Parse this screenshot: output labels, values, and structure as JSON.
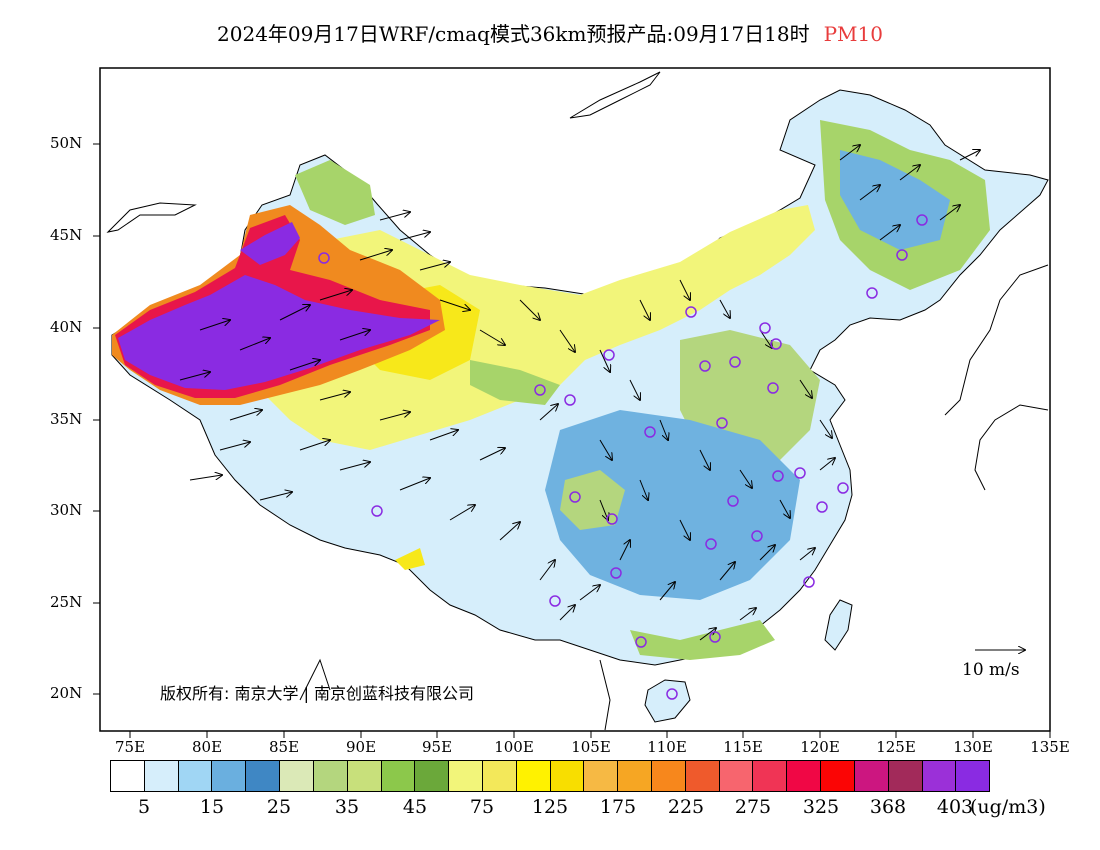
{
  "header": {
    "title": "2024年09月17日WRF/cmaq模式36km预报产品:09月17日18时",
    "pollutant": "PM10"
  },
  "map": {
    "lat_labels": [
      "50N",
      "45N",
      "40N",
      "35N",
      "30N",
      "25N",
      "20N"
    ],
    "lon_labels": [
      "75E",
      "80E",
      "85E",
      "90E",
      "95E",
      "100E",
      "105E",
      "110E",
      "115E",
      "120E",
      "125E",
      "130E",
      "135E"
    ],
    "copyright": "版权所有: 南京大学 | 南京创蓝科技有限公司",
    "wind_reference": "10 m/s",
    "colors": {
      "extreme": "#8a2be2",
      "very_high": "#e8164a",
      "high": "#f08a1f",
      "moderate": "#f7e81a",
      "good": "#a7d46a",
      "low": "#6fb2e0",
      "very_low": "#cfe9f8",
      "station": "#8a2be2"
    }
  },
  "legend": {
    "colors": [
      "#ffffff",
      "#d6eefb",
      "#a0d6f4",
      "#6aafdf",
      "#3f87c4",
      "#dbe9b7",
      "#b4d67e",
      "#c8e07b",
      "#8cc84b",
      "#6ba83a",
      "#f2f57a",
      "#f3e85a",
      "#fff200",
      "#f8de00",
      "#f6b944",
      "#f6a623",
      "#f7871c",
      "#ef5a2c",
      "#f7656e",
      "#f03455",
      "#f00745",
      "#fb0505",
      "#cc1680",
      "#a22a5a",
      "#9b30d8",
      "#8a2be2"
    ],
    "tick_labels": [
      "5",
      "15",
      "25",
      "35",
      "45",
      "75",
      "125",
      "175",
      "225",
      "275",
      "325",
      "368",
      "403"
    ],
    "unit": "(ug/m3)"
  }
}
